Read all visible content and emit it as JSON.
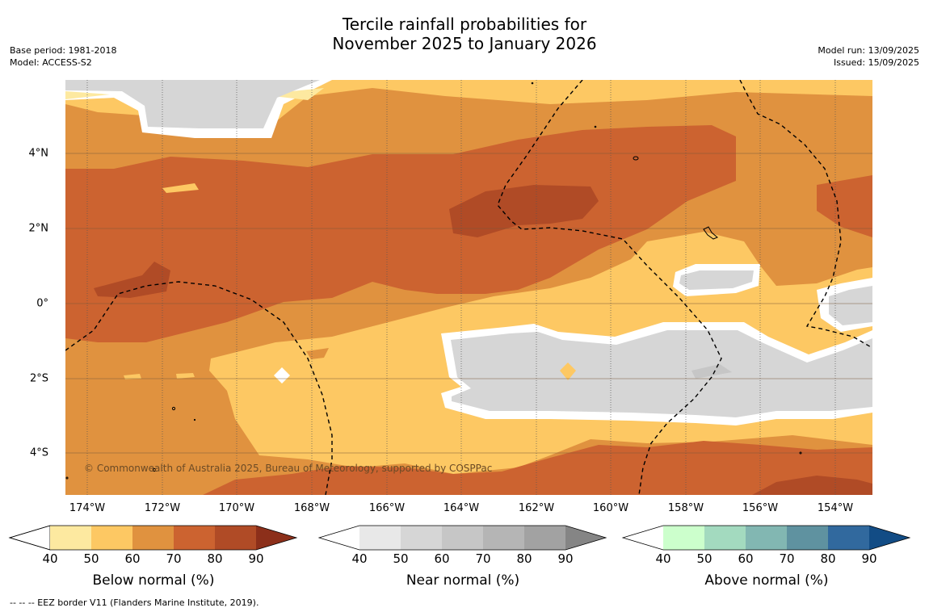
{
  "header": {
    "title_line1": "Tercile rainfall probabilities for",
    "title_line2": "November 2025 to January 2026",
    "base_period": "Base period: 1981-2018",
    "model": "Model: ACCESS-S2",
    "model_run": "Model run: 13/09/2025",
    "issued": "Issued: 15/09/2025"
  },
  "map": {
    "x_ticks": [
      "174°W",
      "172°W",
      "170°W",
      "168°W",
      "166°W",
      "164°W",
      "162°W",
      "160°W",
      "158°W",
      "156°W",
      "154°W"
    ],
    "y_ticks": [
      "4°N",
      "2°N",
      "0°",
      "2°S",
      "4°S"
    ],
    "copyright": "© Commonwealth of Australia 2025, Bureau of Meteorology, supported by COSPPac"
  },
  "legends": [
    {
      "title": "Below normal (%)",
      "ticks": [
        "40",
        "50",
        "60",
        "70",
        "80",
        "90"
      ],
      "colors": [
        "#ffffff",
        "#fde9a0",
        "#fdc863",
        "#e0923f",
        "#cc6330",
        "#b04b26",
        "#8c2f1a"
      ]
    },
    {
      "title": "Near normal (%)",
      "ticks": [
        "40",
        "50",
        "60",
        "70",
        "80",
        "90"
      ],
      "colors": [
        "#ffffff",
        "#e8e8e8",
        "#d6d6d6",
        "#c6c6c6",
        "#b5b5b5",
        "#a2a2a2",
        "#858585"
      ]
    },
    {
      "title": "Above normal (%)",
      "ticks": [
        "40",
        "50",
        "60",
        "70",
        "80",
        "90"
      ],
      "colors": [
        "#ffffff",
        "#ccffcc",
        "#a3dabf",
        "#82b7b2",
        "#5f92a0",
        "#31699e",
        "#124c85"
      ]
    }
  ],
  "footnote": "--  --  -- EEZ border V11 (Flanders Marine Institute, 2019)."
}
